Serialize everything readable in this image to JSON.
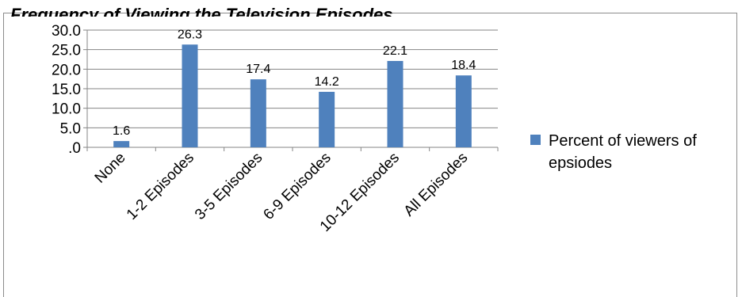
{
  "chart_data": {
    "type": "bar",
    "title": "Frequency of Viewing the Television Episodes",
    "categories": [
      "None",
      "1-2 Episodes",
      "3-5 Episodes",
      "6-9 Episodes",
      "10-12 Episodes",
      "All Episodes"
    ],
    "series": [
      {
        "name": "Percent of viewers of epsiodes",
        "values": [
          1.6,
          26.3,
          17.4,
          14.2,
          22.1,
          18.4
        ]
      }
    ],
    "data_labels": [
      "1.6",
      "26.3",
      "17.4",
      "14.2",
      "22.1",
      "18.4"
    ],
    "y_ticks": [
      ".0",
      "5.0",
      "10.0",
      "15.0",
      "20.0",
      "25.0",
      "30.0"
    ],
    "ylim": [
      0,
      30
    ],
    "grid": true,
    "legend_position": "right",
    "colors": {
      "bar": "#4f81bd",
      "grid": "#868686",
      "axis": "#868686"
    }
  }
}
